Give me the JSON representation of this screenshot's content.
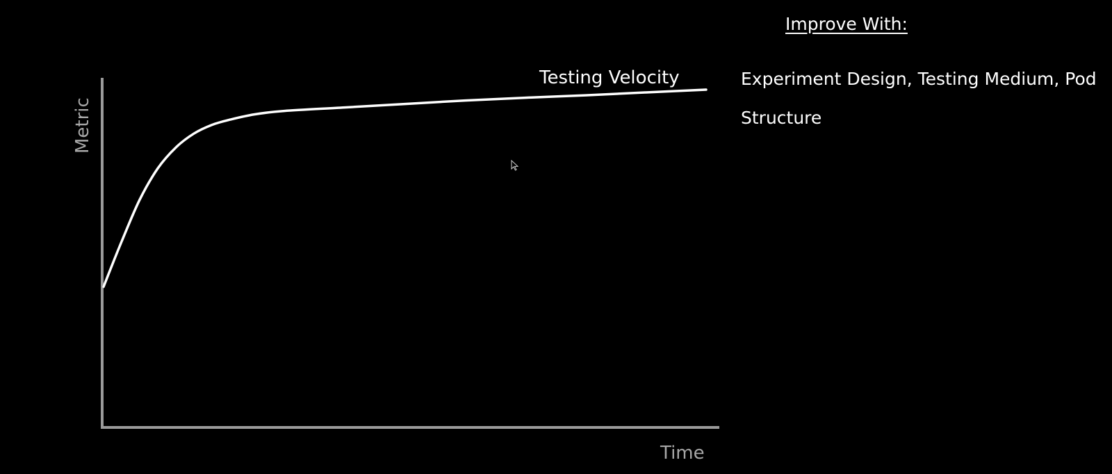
{
  "chart_data": {
    "type": "line",
    "xlabel": "Time",
    "ylabel": "Metric",
    "series": [
      {
        "name": "Testing Velocity",
        "x": [
          0,
          3,
          6,
          9,
          12,
          15,
          18,
          21,
          25,
          30,
          40,
          50,
          60,
          70,
          80,
          90,
          100
        ],
        "y": [
          40,
          53,
          65,
          74,
          80,
          84,
          86.5,
          88,
          89.5,
          90.5,
          91.5,
          92.5,
          93.5,
          94.3,
          95,
          95.8,
          96.6
        ]
      }
    ],
    "xlim": [
      0,
      100
    ],
    "ylim": [
      0,
      100
    ],
    "grid": false,
    "legend": "none"
  },
  "side_panel": {
    "heading": "Improve With:",
    "body": "Experiment Design, Testing Medium, Pod Structure"
  },
  "colors": {
    "background": "#000000",
    "axis": "#9a9a9a",
    "curve": "#ffffff",
    "text": "#ffffff"
  }
}
